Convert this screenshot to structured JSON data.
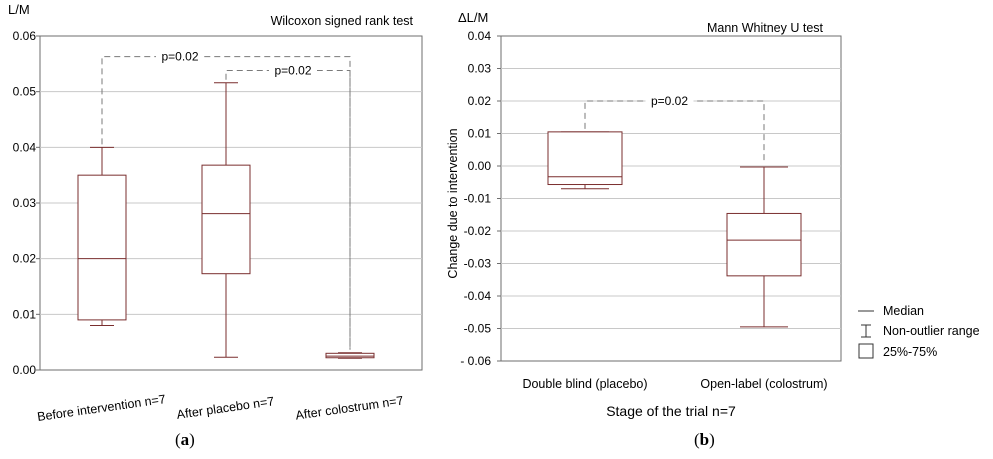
{
  "chart_data": [
    {
      "type": "box",
      "test_label": "Wilcoxon signed rank test",
      "ylabel": "L/M",
      "ylim": [
        0,
        0.06
      ],
      "yticks": [
        "0.00",
        "0.01",
        "0.02",
        "0.03",
        "0.04",
        "0.05",
        "0.06"
      ],
      "ytick_values": [
        0,
        0.01,
        0.02,
        0.03,
        0.04,
        0.05,
        0.06
      ],
      "categories": [
        "Before intervention n=7",
        "After placebo n=7",
        "After colostrum n=7"
      ],
      "boxes": [
        {
          "min": 0.008,
          "q1": 0.009,
          "median": 0.02,
          "q3": 0.035,
          "max": 0.04
        },
        {
          "min": 0.0023,
          "q1": 0.0173,
          "median": 0.0281,
          "q3": 0.0368,
          "max": 0.0516
        },
        {
          "min": 0.0021,
          "q1": 0.0022,
          "median": 0.0025,
          "q3": 0.003,
          "max": 0.0031
        }
      ],
      "annotations": [
        {
          "text": "p=0.02",
          "from": 0,
          "to": 2,
          "y": 0.0563
        },
        {
          "text": "p=0.02",
          "from": 1,
          "to": 2,
          "y": 0.0538
        }
      ],
      "caption": "(a)",
      "grid": "horizontal"
    },
    {
      "type": "box",
      "test_label": "Mann Whitney U test",
      "ylabel": "ΔL/M",
      "ylabel_rotated": "Change due to intervention",
      "xlabel": "Stage of the trial n=7",
      "ylim": [
        -0.06,
        0.04
      ],
      "yticks": [
        "0.04",
        "0.03",
        "0.02",
        "0.01",
        "0.00",
        "-0.01",
        "-0.02",
        "-0.03",
        "-0.04",
        "-0.05",
        "- 0.06"
      ],
      "ytick_values": [
        0.04,
        0.03,
        0.02,
        0.01,
        0,
        -0.01,
        -0.02,
        -0.03,
        -0.04,
        -0.05,
        -0.06
      ],
      "categories": [
        "Double blind (placebo)",
        "Open-label (colostrum)"
      ],
      "boxes": [
        {
          "min": -0.007,
          "q1": -0.0057,
          "median": -0.0033,
          "q3": 0.0105,
          "max": 0.0105
        },
        {
          "min": -0.0495,
          "q1": -0.0338,
          "median": -0.0228,
          "q3": -0.0146,
          "max": -0.0003
        }
      ],
      "annotations": [
        {
          "text": "p=0.02",
          "from": 0,
          "to": 1,
          "y": 0.02
        }
      ],
      "caption": "(b)",
      "grid": "horizontal",
      "legend": {
        "position": "right",
        "items": [
          {
            "marker": "line",
            "label": "Median"
          },
          {
            "marker": "whisker",
            "label": "Non-outlier range"
          },
          {
            "marker": "box",
            "label": "25%-75%"
          }
        ]
      }
    }
  ],
  "colors": {
    "box": "#7a2e2e",
    "grid": "#c8c8c8",
    "frame": "#6e6e6e",
    "dashed": "#7a7a7a"
  }
}
